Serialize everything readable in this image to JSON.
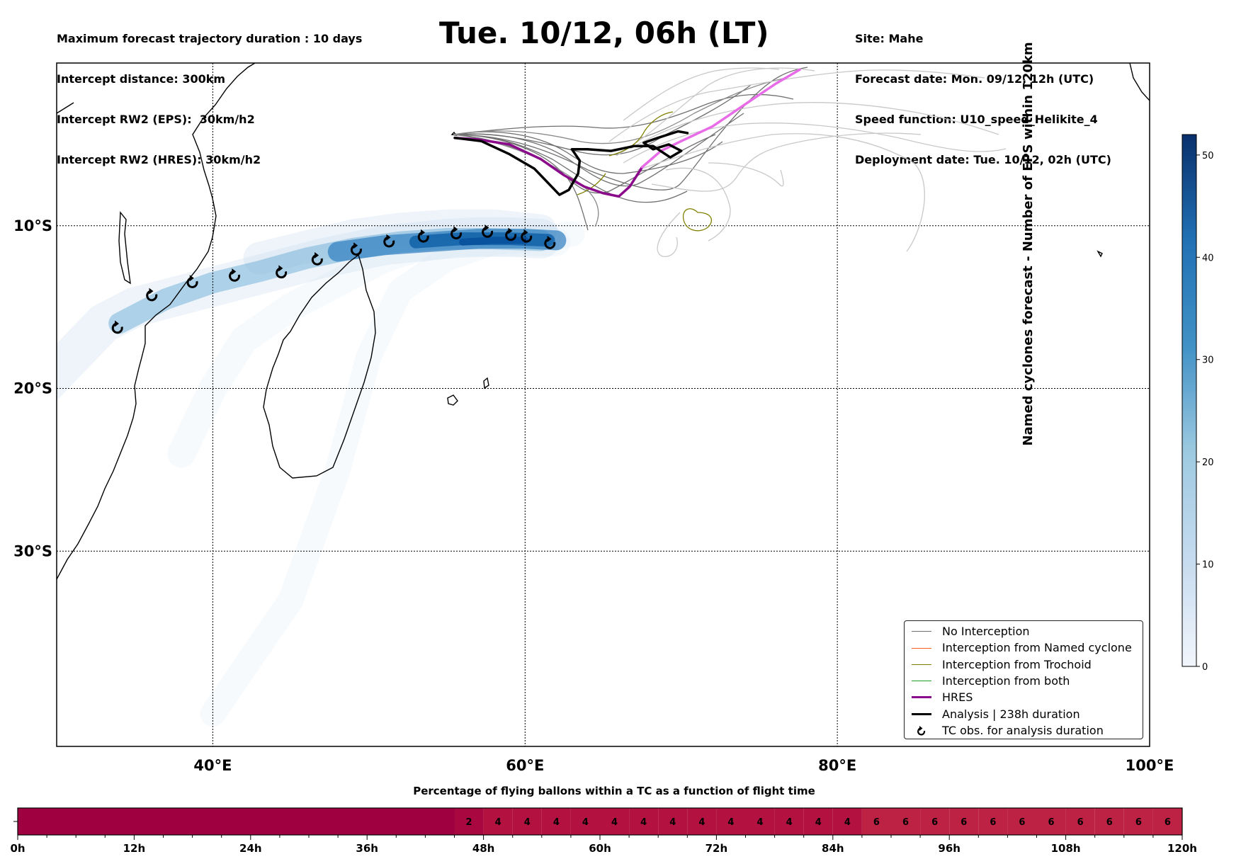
{
  "header": {
    "left_lines": [
      "Maximum forecast trajectory duration : 10 days",
      "Intercept distance: 300km",
      "Intercept RW2 (EPS):  30km/h2",
      "Intercept RW2 (HRES): 30km/h2"
    ],
    "title": "Tue. 10/12, 06h (LT)",
    "right_lines": [
      "Site: Mahe",
      "Forecast date: Mon. 09/12, 12h (UTC)",
      "Speed function: U10_speed_Helikite_4",
      "Deployment date: Tue. 10/12, 02h (UTC)"
    ]
  },
  "map": {
    "extent": {
      "lon_min": 30,
      "lon_max": 100,
      "lat_min": -42,
      "lat_max": 0
    },
    "lat_labels": [
      "10°S",
      "20°S",
      "30°S"
    ],
    "lon_labels": [
      "40°E",
      "60°E",
      "80°E",
      "100°E"
    ],
    "deployment_site": {
      "name": "Mahe",
      "lon": 55.5,
      "lat": -4.6
    },
    "tc_observations": [
      {
        "lon": 33.9,
        "lat": -16.3
      },
      {
        "lon": 36.1,
        "lat": -14.3
      },
      {
        "lon": 38.7,
        "lat": -13.5
      },
      {
        "lon": 41.4,
        "lat": -13.1
      },
      {
        "lon": 44.4,
        "lat": -12.9
      },
      {
        "lon": 46.7,
        "lat": -12.1
      },
      {
        "lon": 49.2,
        "lat": -11.5
      },
      {
        "lon": 51.3,
        "lat": -11.0
      },
      {
        "lon": 53.5,
        "lat": -10.7
      },
      {
        "lon": 55.6,
        "lat": -10.5
      },
      {
        "lon": 57.6,
        "lat": -10.4
      },
      {
        "lon": 59.1,
        "lat": -10.6
      },
      {
        "lon": 60.1,
        "lat": -10.7
      },
      {
        "lon": 61.6,
        "lat": -11.1
      }
    ],
    "hres_track": [
      [
        55.5,
        -4.6
      ],
      [
        57.0,
        -4.7
      ],
      [
        59.0,
        -5.0
      ],
      [
        61.0,
        -5.9
      ],
      [
        62.5,
        -6.9
      ],
      [
        63.8,
        -7.6
      ],
      [
        65.0,
        -8.0
      ],
      [
        66.0,
        -8.2
      ],
      [
        66.7,
        -7.6
      ],
      [
        67.5,
        -6.4
      ],
      [
        68.7,
        -5.4
      ],
      [
        70.0,
        -4.8
      ],
      [
        72.0,
        -3.9
      ],
      [
        74.0,
        -2.6
      ],
      [
        76.0,
        -1.3
      ],
      [
        77.6,
        -0.4
      ]
    ],
    "analysis_track": [
      [
        55.5,
        -4.6
      ],
      [
        57.2,
        -4.8
      ],
      [
        59.0,
        -5.6
      ],
      [
        60.6,
        -6.5
      ],
      [
        61.6,
        -7.5
      ],
      [
        62.2,
        -8.1
      ],
      [
        62.8,
        -7.8
      ],
      [
        63.4,
        -6.8
      ],
      [
        63.5,
        -6.0
      ],
      [
        63.0,
        -5.3
      ],
      [
        64.0,
        -5.3
      ],
      [
        65.5,
        -5.4
      ],
      [
        67.0,
        -5.1
      ],
      [
        68.2,
        -5.1
      ],
      [
        69.3,
        -5.8
      ],
      [
        70.0,
        -5.4
      ],
      [
        69.2,
        -5.0
      ],
      [
        68.2,
        -5.3
      ],
      [
        67.6,
        -4.9
      ],
      [
        68.5,
        -4.6
      ],
      [
        69.8,
        -4.2
      ],
      [
        70.4,
        -4.3
      ]
    ],
    "density_tracks": [
      {
        "points": [
          [
            40,
            -40
          ],
          [
            45,
            -33
          ],
          [
            48,
            -25
          ],
          [
            50,
            -18
          ],
          [
            52,
            -14
          ],
          [
            55,
            -12
          ],
          [
            58,
            -11
          ],
          [
            61,
            -10.8
          ],
          [
            63,
            -10.5
          ]
        ],
        "width": 36,
        "opacity": 0.22
      },
      {
        "points": [
          [
            38,
            -24
          ],
          [
            40,
            -20
          ],
          [
            42,
            -17
          ],
          [
            45,
            -15
          ],
          [
            47,
            -14
          ],
          [
            49,
            -13
          ],
          [
            51,
            -12
          ],
          [
            53,
            -11.4
          ],
          [
            56,
            -11
          ],
          [
            59,
            -11
          ],
          [
            62,
            -11
          ]
        ],
        "width": 40,
        "opacity": 0.22
      },
      {
        "points": [
          [
            28,
            -21
          ],
          [
            31,
            -18
          ],
          [
            33,
            -16
          ],
          [
            35,
            -15
          ],
          [
            37,
            -14.5
          ],
          [
            39,
            -14
          ],
          [
            41,
            -13.5
          ],
          [
            43,
            -13
          ],
          [
            45,
            -12.5
          ],
          [
            47,
            -12
          ],
          [
            49,
            -11.6
          ],
          [
            51,
            -11.2
          ],
          [
            53,
            -11
          ],
          [
            55,
            -10.8
          ],
          [
            57,
            -10.7
          ],
          [
            59,
            -10.7
          ],
          [
            61,
            -10.8
          ]
        ],
        "width": 56,
        "opacity": 0.3
      },
      {
        "points": [
          [
            43,
            -12
          ],
          [
            46,
            -11.3
          ],
          [
            49,
            -10.6
          ],
          [
            52,
            -10.2
          ],
          [
            55,
            -10
          ],
          [
            58,
            -10
          ],
          [
            61,
            -10.3
          ]
        ],
        "width": 46,
        "opacity": 0.3
      },
      {
        "points": [
          [
            34,
            -16
          ],
          [
            37,
            -14.5
          ],
          [
            40,
            -13.5
          ],
          [
            43,
            -12.8
          ],
          [
            46,
            -12
          ],
          [
            49,
            -11.4
          ],
          [
            52,
            -11
          ],
          [
            55,
            -10.8
          ],
          [
            58,
            -10.8
          ],
          [
            61,
            -10.9
          ]
        ],
        "width": 30,
        "opacity": 0.5
      },
      {
        "points": [
          [
            48,
            -11.6
          ],
          [
            51,
            -11.2
          ],
          [
            54,
            -11
          ],
          [
            57,
            -10.8
          ],
          [
            60,
            -10.8
          ],
          [
            62,
            -10.9
          ]
        ],
        "width": 28,
        "opacity": 0.7
      },
      {
        "points": [
          [
            53,
            -11
          ],
          [
            56,
            -10.8
          ],
          [
            59,
            -10.8
          ],
          [
            61.5,
            -10.9
          ]
        ],
        "width": 18,
        "opacity": 0.85
      },
      {
        "points": [
          [
            56,
            -11
          ],
          [
            58,
            -10.9
          ],
          [
            60,
            -10.9
          ]
        ],
        "width": 10,
        "opacity": 0.95
      }
    ]
  },
  "legend": {
    "items": [
      {
        "label": "No Interception",
        "color": "#707070",
        "width": 1.2
      },
      {
        "label": "Interception from Named cyclone",
        "color": "#ff5a1f",
        "width": 1.2
      },
      {
        "label": "Interception from Trochoid",
        "color": "#808000",
        "width": 1.2
      },
      {
        "label": "Interception from both",
        "color": "#1e9e1e",
        "width": 1.2
      },
      {
        "label": "HRES",
        "color": "#8b0a8b",
        "width": 3.5
      },
      {
        "label": "Analysis | 238h duration",
        "color": "#000000",
        "width": 3.5
      },
      {
        "label": "TC obs. for analysis duration",
        "color": "#000000",
        "width": 0,
        "marker": "cyclone"
      }
    ]
  },
  "colorbar": {
    "title": "Named cyclones forecast - Number of EPS within 120km",
    "min": 0,
    "max": 52,
    "ticks": [
      "0",
      "10",
      "20",
      "30",
      "40",
      "50"
    ],
    "color_low": "#f2f6fc",
    "color_high": "#08306b"
  },
  "bottom_bar": {
    "title": "Percentage of flying ballons within a TC as a function of flight time",
    "hours_max": 120,
    "tick_labels": [
      "0h",
      "12h",
      "24h",
      "36h",
      "48h",
      "60h",
      "72h",
      "84h",
      "96h",
      "108h",
      "120h"
    ],
    "segments": [
      {
        "start": 0,
        "end": 45,
        "value": "",
        "color": "#9f0040"
      },
      {
        "start": 45,
        "end": 48,
        "value": "2",
        "color": "#a9073f"
      },
      {
        "start": 48,
        "end": 51,
        "value": "4",
        "color": "#b31240"
      },
      {
        "start": 51,
        "end": 54,
        "value": "4",
        "color": "#b31240"
      },
      {
        "start": 54,
        "end": 57,
        "value": "4",
        "color": "#b31240"
      },
      {
        "start": 57,
        "end": 60,
        "value": "4",
        "color": "#b31240"
      },
      {
        "start": 60,
        "end": 63,
        "value": "4",
        "color": "#b31240"
      },
      {
        "start": 63,
        "end": 66,
        "value": "4",
        "color": "#b31240"
      },
      {
        "start": 66,
        "end": 69,
        "value": "4",
        "color": "#b31240"
      },
      {
        "start": 69,
        "end": 72,
        "value": "4",
        "color": "#b31240"
      },
      {
        "start": 72,
        "end": 75,
        "value": "4",
        "color": "#b31240"
      },
      {
        "start": 75,
        "end": 78,
        "value": "4",
        "color": "#b31240"
      },
      {
        "start": 78,
        "end": 81,
        "value": "4",
        "color": "#b31240"
      },
      {
        "start": 81,
        "end": 84,
        "value": "4",
        "color": "#b31240"
      },
      {
        "start": 84,
        "end": 87,
        "value": "4",
        "color": "#b31240"
      },
      {
        "start": 87,
        "end": 90,
        "value": "6",
        "color": "#bd2244"
      },
      {
        "start": 90,
        "end": 93,
        "value": "6",
        "color": "#bd2244"
      },
      {
        "start": 93,
        "end": 96,
        "value": "6",
        "color": "#bd2244"
      },
      {
        "start": 96,
        "end": 99,
        "value": "6",
        "color": "#bd2244"
      },
      {
        "start": 99,
        "end": 102,
        "value": "6",
        "color": "#bd2244"
      },
      {
        "start": 102,
        "end": 105,
        "value": "6",
        "color": "#bd2244"
      },
      {
        "start": 105,
        "end": 108,
        "value": "6",
        "color": "#bd2244"
      },
      {
        "start": 108,
        "end": 111,
        "value": "6",
        "color": "#bd2244"
      },
      {
        "start": 111,
        "end": 114,
        "value": "6",
        "color": "#bd2244"
      },
      {
        "start": 114,
        "end": 117,
        "value": "6",
        "color": "#bd2244"
      },
      {
        "start": 117,
        "end": 120,
        "value": "6",
        "color": "#bd2244"
      }
    ]
  }
}
